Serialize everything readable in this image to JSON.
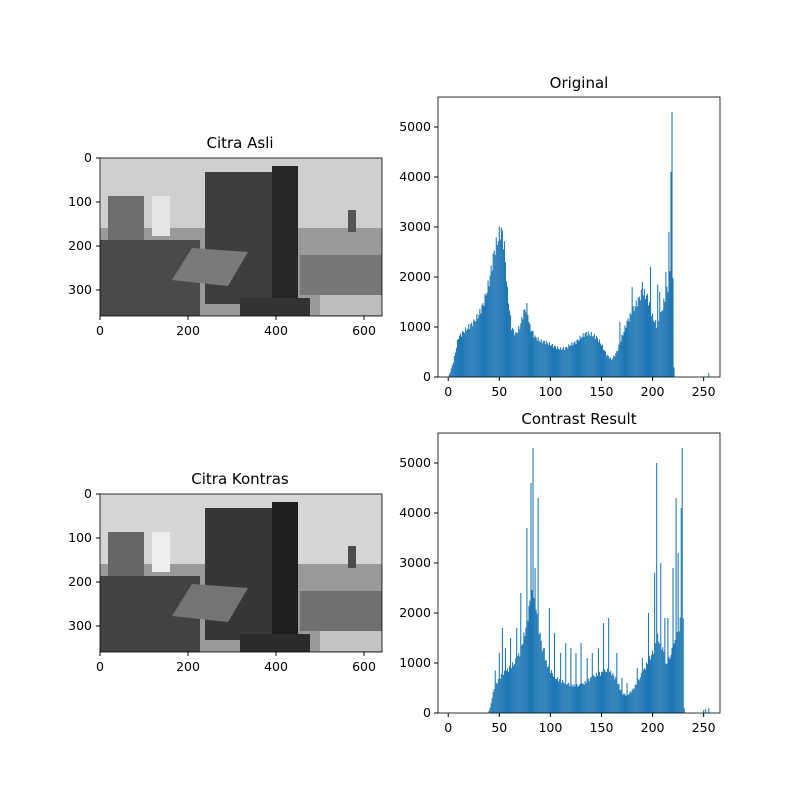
{
  "panels": {
    "image_original": {
      "title": "Citra Asli",
      "x_ticks": [
        "0",
        "200",
        "400",
        "600"
      ],
      "y_ticks": [
        "0",
        "100",
        "200",
        "300"
      ],
      "xlim": [
        0,
        640
      ],
      "ylim": [
        360,
        0
      ]
    },
    "image_contrast": {
      "title": "Citra Kontras",
      "x_ticks": [
        "0",
        "200",
        "400",
        "600"
      ],
      "y_ticks": [
        "0",
        "100",
        "200",
        "300"
      ],
      "xlim": [
        0,
        640
      ],
      "ylim": [
        360,
        0
      ]
    }
  },
  "chart_data": [
    {
      "type": "bar",
      "title": "Original",
      "xlabel": "",
      "ylabel": "",
      "xlim": [
        -10,
        266
      ],
      "ylim": [
        0,
        5600
      ],
      "x_ticks": [
        "0",
        "50",
        "100",
        "150",
        "200",
        "250"
      ],
      "y_ticks": [
        "0",
        "1000",
        "2000",
        "3000",
        "4000",
        "5000"
      ],
      "bar_color": "#1f77b4",
      "bins": [
        0,
        255
      ],
      "profile": [
        [
          0,
          0
        ],
        [
          2,
          100
        ],
        [
          5,
          300
        ],
        [
          8,
          600
        ],
        [
          10,
          800
        ],
        [
          15,
          900
        ],
        [
          20,
          1000
        ],
        [
          25,
          1100
        ],
        [
          30,
          1250
        ],
        [
          35,
          1500
        ],
        [
          40,
          1900
        ],
        [
          45,
          2500
        ],
        [
          50,
          2850
        ],
        [
          52,
          2950
        ],
        [
          55,
          2600
        ],
        [
          58,
          1700
        ],
        [
          62,
          1000
        ],
        [
          66,
          850
        ],
        [
          70,
          1000
        ],
        [
          74,
          1300
        ],
        [
          77,
          1400
        ],
        [
          80,
          1000
        ],
        [
          85,
          800
        ],
        [
          90,
          720
        ],
        [
          95,
          700
        ],
        [
          100,
          650
        ],
        [
          105,
          600
        ],
        [
          110,
          560
        ],
        [
          115,
          580
        ],
        [
          120,
          650
        ],
        [
          125,
          700
        ],
        [
          130,
          800
        ],
        [
          135,
          880
        ],
        [
          140,
          850
        ],
        [
          145,
          800
        ],
        [
          150,
          650
        ],
        [
          155,
          450
        ],
        [
          160,
          350
        ],
        [
          165,
          500
        ],
        [
          170,
          800
        ],
        [
          175,
          1100
        ],
        [
          180,
          1300
        ],
        [
          185,
          1500
        ],
        [
          190,
          1700
        ],
        [
          195,
          1600
        ],
        [
          200,
          1200
        ],
        [
          205,
          1000
        ],
        [
          210,
          1400
        ],
        [
          215,
          1800
        ],
        [
          218,
          2200
        ],
        [
          220,
          2000
        ],
        [
          221,
          200
        ],
        [
          222,
          0
        ],
        [
          255,
          0
        ]
      ],
      "spikes": [
        [
          168,
          1100
        ],
        [
          180,
          1800
        ],
        [
          190,
          1900
        ],
        [
          192,
          1600
        ],
        [
          198,
          2200
        ],
        [
          205,
          1850
        ],
        [
          207,
          1700
        ],
        [
          213,
          2100
        ],
        [
          216,
          2900
        ],
        [
          218,
          4100
        ],
        [
          219,
          5300
        ]
      ],
      "extra": [
        [
          255,
          80
        ]
      ]
    },
    {
      "type": "bar",
      "title": "Contrast Result",
      "xlabel": "",
      "ylabel": "",
      "xlim": [
        -10,
        266
      ],
      "ylim": [
        0,
        5600
      ],
      "x_ticks": [
        "0",
        "50",
        "100",
        "150",
        "200",
        "250"
      ],
      "y_ticks": [
        "0",
        "1000",
        "2000",
        "3000",
        "4000",
        "5000"
      ],
      "bar_color": "#1f77b4",
      "bins": [
        0,
        255
      ],
      "profile": [
        [
          0,
          0
        ],
        [
          39,
          0
        ],
        [
          41,
          100
        ],
        [
          45,
          500
        ],
        [
          50,
          700
        ],
        [
          55,
          800
        ],
        [
          60,
          900
        ],
        [
          65,
          1000
        ],
        [
          70,
          1200
        ],
        [
          75,
          1600
        ],
        [
          80,
          2200
        ],
        [
          83,
          2400
        ],
        [
          85,
          2350
        ],
        [
          88,
          1800
        ],
        [
          92,
          1300
        ],
        [
          96,
          1000
        ],
        [
          100,
          850
        ],
        [
          105,
          700
        ],
        [
          110,
          650
        ],
        [
          115,
          600
        ],
        [
          120,
          560
        ],
        [
          125,
          540
        ],
        [
          130,
          560
        ],
        [
          135,
          620
        ],
        [
          140,
          700
        ],
        [
          145,
          760
        ],
        [
          150,
          800
        ],
        [
          155,
          850
        ],
        [
          160,
          800
        ],
        [
          165,
          650
        ],
        [
          170,
          400
        ],
        [
          175,
          350
        ],
        [
          180,
          450
        ],
        [
          185,
          600
        ],
        [
          190,
          800
        ],
        [
          195,
          1000
        ],
        [
          200,
          1200
        ],
        [
          205,
          1500
        ],
        [
          210,
          1300
        ],
        [
          213,
          950
        ],
        [
          215,
          1000
        ],
        [
          220,
          1300
        ],
        [
          225,
          1600
        ],
        [
          228,
          1900
        ],
        [
          230,
          1800
        ],
        [
          231,
          100
        ],
        [
          232,
          0
        ],
        [
          255,
          0
        ]
      ],
      "spikes": [
        [
          43,
          300
        ],
        [
          46,
          850
        ],
        [
          50,
          1200
        ],
        [
          53,
          1700
        ],
        [
          56,
          1300
        ],
        [
          61,
          1500
        ],
        [
          67,
          1700
        ],
        [
          71,
          2400
        ],
        [
          77,
          3700
        ],
        [
          81,
          4600
        ],
        [
          83,
          5300
        ],
        [
          85,
          2900
        ],
        [
          88,
          4300
        ],
        [
          94,
          1300
        ],
        [
          99,
          2100
        ],
        [
          104,
          1600
        ],
        [
          110,
          1200
        ],
        [
          115,
          1400
        ],
        [
          120,
          1300
        ],
        [
          125,
          1200
        ],
        [
          130,
          1400
        ],
        [
          136,
          1100
        ],
        [
          141,
          1200
        ],
        [
          147,
          1300
        ],
        [
          152,
          1800
        ],
        [
          157,
          1900
        ],
        [
          165,
          1200
        ],
        [
          170,
          700
        ],
        [
          175,
          600
        ],
        [
          185,
          900
        ],
        [
          190,
          1100
        ],
        [
          196,
          2000
        ],
        [
          202,
          2800
        ],
        [
          204,
          5000
        ],
        [
          208,
          3000
        ],
        [
          212,
          1900
        ],
        [
          215,
          1900
        ],
        [
          220,
          2900
        ],
        [
          223,
          4300
        ],
        [
          225,
          3200
        ],
        [
          228,
          4100
        ],
        [
          229,
          5300
        ]
      ],
      "extra": [
        [
          250,
          60
        ],
        [
          252,
          80
        ],
        [
          255,
          100
        ]
      ]
    }
  ]
}
